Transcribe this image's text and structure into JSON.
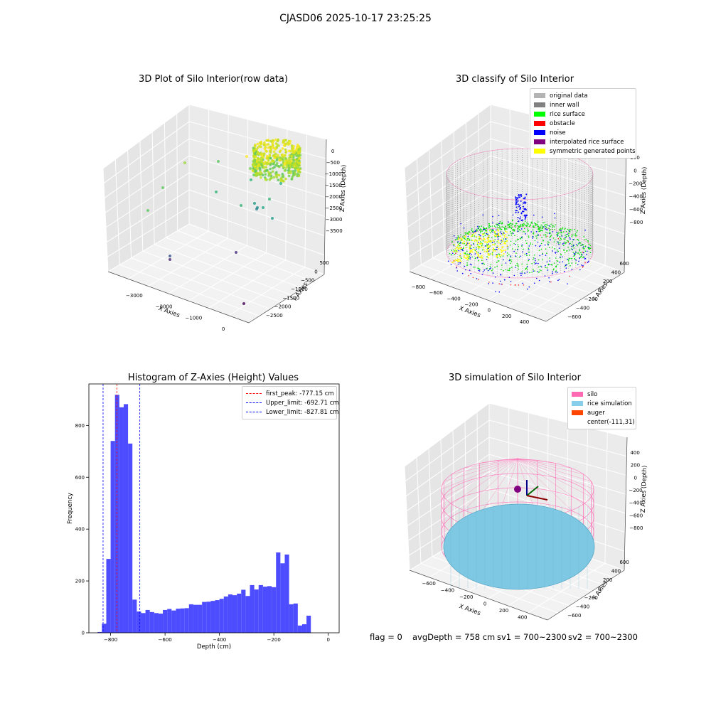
{
  "figure_title": "CJASD06 2025-10-17 23:25:25",
  "footer": {
    "flag": "flag = 0",
    "avg_depth": "avgDepth = 758 cm",
    "sv1": "sv1 = 700~2300",
    "sv2": "sv2 = 700~2300"
  },
  "chart_data": [
    {
      "type": "scatter",
      "title": "3D Plot of Silo Interior(row data)",
      "xlabel": "X Axies",
      "ylabel": "Y Axies",
      "zlabel": "Z Axies (Depth)",
      "x_ticks": [
        "−3000",
        "−2000",
        "−1000",
        "0"
      ],
      "y_ticks": [
        "500",
        "0",
        "−500",
        "−1000",
        "−1500",
        "−2000",
        "−2500"
      ],
      "z_ticks": [
        "0",
        "−500",
        "−1000",
        "−1500",
        "−2000",
        "−2500",
        "−3000",
        "−3500"
      ],
      "colormap": "viridis"
    },
    {
      "type": "scatter",
      "title": "3D classify of Silo Interior",
      "xlabel": "X Axies",
      "ylabel": "Y Axies",
      "zlabel": "Z Axies (Depth)",
      "x_ticks": [
        "−800",
        "−600",
        "−400",
        "−200",
        "0",
        "200",
        "400"
      ],
      "y_ticks": [
        "600",
        "400",
        "200",
        "0",
        "−200",
        "−400",
        "−600"
      ],
      "z_ticks": [
        "200",
        "0",
        "−200",
        "−400",
        "−600",
        "−800"
      ],
      "legend": [
        {
          "label": "original data",
          "color": "#b3b3b3"
        },
        {
          "label": "inner wall",
          "color": "#808080"
        },
        {
          "label": "rice surface",
          "color": "#00ff00"
        },
        {
          "label": "obstacle",
          "color": "#ff0000"
        },
        {
          "label": "noise",
          "color": "#0000ff"
        },
        {
          "label": "interpolated rice surface",
          "color": "#800080"
        },
        {
          "label": "symmetric generated points",
          "color": "#ffff00"
        }
      ]
    },
    {
      "type": "bar",
      "title": "Histogram of Z-Axies (Height) Values",
      "xlabel": "Depth (cm)",
      "ylabel": "Frequency",
      "xlim": [
        -880,
        40
      ],
      "ylim": [
        0,
        960
      ],
      "x_ticks": [
        -800,
        -600,
        -400,
        -200,
        0
      ],
      "y_ticks": [
        0,
        200,
        400,
        600,
        800
      ],
      "bar_color": "#4d4dff",
      "bin_width": 16,
      "bin_starts": [
        -848,
        -832,
        -816,
        -800,
        -784,
        -768,
        -752,
        -736,
        -720,
        -704,
        -688,
        -672,
        -656,
        -640,
        -624,
        -608,
        -592,
        -576,
        -560,
        -544,
        -528,
        -512,
        -496,
        -480,
        -464,
        -448,
        -432,
        -416,
        -400,
        -384,
        -368,
        -352,
        -336,
        -320,
        -304,
        -288,
        -272,
        -256,
        -240,
        -224,
        -208,
        -192,
        -176,
        -160,
        -144,
        -128,
        -112,
        -96,
        -80,
        -64,
        -48,
        -32,
        -16
      ],
      "values": [
        3,
        35,
        285,
        740,
        918,
        870,
        882,
        730,
        128,
        82,
        76,
        88,
        80,
        76,
        74,
        88,
        92,
        86,
        93,
        94,
        95,
        110,
        108,
        108,
        119,
        120,
        123,
        126,
        131,
        140,
        148,
        145,
        151,
        166,
        142,
        184,
        167,
        184,
        178,
        180,
        176,
        310,
        268,
        302,
        110,
        113,
        28,
        33,
        66,
        0,
        0,
        0,
        0
      ],
      "vlines": [
        {
          "label": "first_peak: -777.15 cm",
          "x": -777.15,
          "color": "#ff0000"
        },
        {
          "label": "Upper_limit: -692.71 cm",
          "x": -692.71,
          "color": "#0000ff"
        },
        {
          "label": "Lower_limit: -827.81 cm",
          "x": -827.81,
          "color": "#0000ff"
        }
      ]
    },
    {
      "type": "scatter",
      "title": "3D simulation of Silo Interior",
      "xlabel": "X Axies",
      "ylabel": "Y Axies",
      "zlabel": "Z Axies (Depth)",
      "x_ticks": [
        "−600",
        "−400",
        "−200",
        "0",
        "200",
        "400"
      ],
      "y_ticks": [
        "600",
        "400",
        "200",
        "0",
        "−200",
        "−400",
        "−600"
      ],
      "z_ticks": [
        "400",
        "200",
        "0",
        "−200",
        "−400",
        "−600",
        "−800"
      ],
      "legend": [
        {
          "label": "silo",
          "color": "#ff69b4"
        },
        {
          "label": "rice simulation",
          "color": "#87ceeb"
        },
        {
          "label": "auger",
          "color": "#ff4500"
        },
        {
          "label": "center(-111,31)",
          "color": ""
        }
      ]
    }
  ]
}
